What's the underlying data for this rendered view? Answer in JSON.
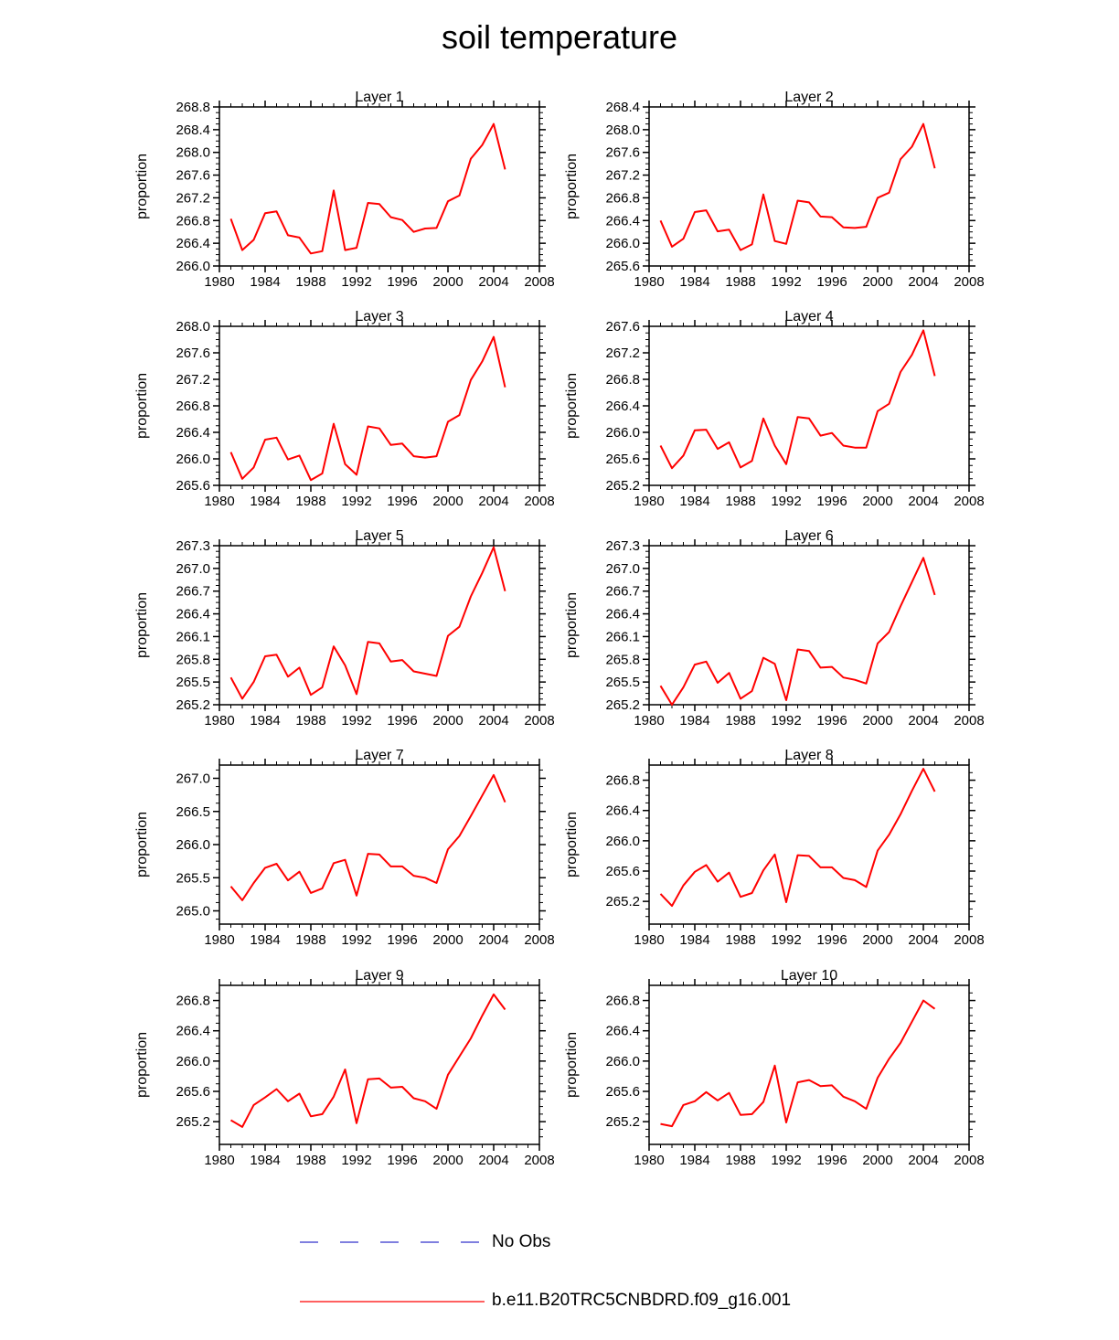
{
  "title": "soil temperature",
  "legend": [
    {
      "label": "No Obs",
      "color": "#3333cc",
      "style": "dashed"
    },
    {
      "label": "b.e11.B20TRC5CNBDRD.f09_g16.001",
      "color": "#ff0000",
      "style": "solid"
    }
  ],
  "chart_data": [
    {
      "type": "line",
      "title": "Layer 1",
      "ylabel": "proportion",
      "xlim": [
        1980,
        2008
      ],
      "xticks": [
        1980,
        1984,
        1988,
        1992,
        1996,
        2000,
        2004,
        2008
      ],
      "ylim": [
        266.0,
        268.8
      ],
      "yticks": [
        266.0,
        266.4,
        266.8,
        267.2,
        267.6,
        268.0,
        268.4,
        268.8
      ],
      "ytick_labels": [
        "266.0",
        "266.4",
        "266.8",
        "267.2",
        "267.6",
        "268.0",
        "268.4",
        "268.8"
      ],
      "series": [
        {
          "name": "b.e11.B20TRC5CNBDRD.f09_g16.001",
          "x": [
            1981,
            1982,
            1983,
            1984,
            1985,
            1986,
            1987,
            1988,
            1989,
            1990,
            1991,
            1992,
            1993,
            1994,
            1995,
            1996,
            1997,
            1998,
            1999,
            2000,
            2001,
            2002,
            2003,
            2004,
            2005
          ],
          "y": [
            266.83,
            266.28,
            266.46,
            266.93,
            266.96,
            266.54,
            266.5,
            266.22,
            266.26,
            267.33,
            266.28,
            266.32,
            267.11,
            267.09,
            266.86,
            266.81,
            266.6,
            266.66,
            266.67,
            267.14,
            267.24,
            267.89,
            268.13,
            268.5,
            267.7
          ]
        }
      ]
    },
    {
      "type": "line",
      "title": "Layer 2",
      "ylabel": "proportion",
      "xlim": [
        1980,
        2008
      ],
      "xticks": [
        1980,
        1984,
        1988,
        1992,
        1996,
        2000,
        2004,
        2008
      ],
      "ylim": [
        265.6,
        268.4
      ],
      "yticks": [
        265.6,
        266.0,
        266.4,
        266.8,
        267.2,
        267.6,
        268.0,
        268.4
      ],
      "ytick_labels": [
        "265.6",
        "266.0",
        "266.4",
        "266.8",
        "267.2",
        "267.6",
        "268.0",
        "268.4"
      ],
      "series": [
        {
          "name": "b.e11.B20TRC5CNBDRD.f09_g16.001",
          "x": [
            1981,
            1982,
            1983,
            1984,
            1985,
            1986,
            1987,
            1988,
            1989,
            1990,
            1991,
            1992,
            1993,
            1994,
            1995,
            1996,
            1997,
            1998,
            1999,
            2000,
            2001,
            2002,
            2003,
            2004,
            2005
          ],
          "y": [
            266.4,
            265.94,
            266.08,
            266.55,
            266.58,
            266.21,
            266.24,
            265.88,
            265.98,
            266.86,
            266.04,
            265.99,
            266.75,
            266.72,
            266.47,
            266.46,
            266.28,
            266.27,
            266.29,
            266.8,
            266.89,
            267.48,
            267.7,
            268.1,
            267.32
          ]
        }
      ]
    },
    {
      "type": "line",
      "title": "Layer 3",
      "ylabel": "proportion",
      "xlim": [
        1980,
        2008
      ],
      "xticks": [
        1980,
        1984,
        1988,
        1992,
        1996,
        2000,
        2004,
        2008
      ],
      "ylim": [
        265.6,
        268.0
      ],
      "yticks": [
        265.6,
        266.0,
        266.4,
        266.8,
        267.2,
        267.6,
        268.0
      ],
      "ytick_labels": [
        "265.6",
        "266.0",
        "266.4",
        "266.8",
        "267.2",
        "267.6",
        "268.0"
      ],
      "series": [
        {
          "name": "b.e11.B20TRC5CNBDRD.f09_g16.001",
          "x": [
            1981,
            1982,
            1983,
            1984,
            1985,
            1986,
            1987,
            1988,
            1989,
            1990,
            1991,
            1992,
            1993,
            1994,
            1995,
            1996,
            1997,
            1998,
            1999,
            2000,
            2001,
            2002,
            2003,
            2004,
            2005
          ],
          "y": [
            266.1,
            265.7,
            265.87,
            266.29,
            266.32,
            265.99,
            266.05,
            265.68,
            265.78,
            266.53,
            265.92,
            265.76,
            266.49,
            266.46,
            266.21,
            266.23,
            266.04,
            266.02,
            266.04,
            266.56,
            266.66,
            267.19,
            267.47,
            267.84,
            267.08
          ]
        }
      ]
    },
    {
      "type": "line",
      "title": "Layer 4",
      "ylabel": "proportion",
      "xlim": [
        1980,
        2008
      ],
      "xticks": [
        1980,
        1984,
        1988,
        1992,
        1996,
        2000,
        2004,
        2008
      ],
      "ylim": [
        265.2,
        267.6
      ],
      "yticks": [
        265.2,
        265.6,
        266.0,
        266.4,
        266.8,
        267.2,
        267.6
      ],
      "ytick_labels": [
        "265.2",
        "265.6",
        "266.0",
        "266.4",
        "266.8",
        "267.2",
        "267.6"
      ],
      "series": [
        {
          "name": "b.e11.B20TRC5CNBDRD.f09_g16.001",
          "x": [
            1981,
            1982,
            1983,
            1984,
            1985,
            1986,
            1987,
            1988,
            1989,
            1990,
            1991,
            1992,
            1993,
            1994,
            1995,
            1996,
            1997,
            1998,
            1999,
            2000,
            2001,
            2002,
            2003,
            2004,
            2005
          ],
          "y": [
            265.8,
            265.46,
            265.65,
            266.03,
            266.04,
            265.75,
            265.85,
            265.47,
            265.57,
            266.21,
            265.8,
            265.52,
            266.23,
            266.21,
            265.95,
            265.99,
            265.8,
            265.77,
            265.77,
            266.32,
            266.43,
            266.91,
            267.17,
            267.54,
            266.85
          ]
        }
      ]
    },
    {
      "type": "line",
      "title": "Layer 5",
      "ylabel": "proportion",
      "xlim": [
        1980,
        2008
      ],
      "xticks": [
        1980,
        1984,
        1988,
        1992,
        1996,
        2000,
        2004,
        2008
      ],
      "ylim": [
        265.2,
        267.3
      ],
      "yticks": [
        265.2,
        265.5,
        265.8,
        266.1,
        266.4,
        266.7,
        267.0,
        267.3
      ],
      "ytick_labels": [
        "265.2",
        "265.5",
        "265.8",
        "266.1",
        "266.4",
        "266.7",
        "267.0",
        "267.3"
      ],
      "series": [
        {
          "name": "b.e11.B20TRC5CNBDRD.f09_g16.001",
          "x": [
            1981,
            1982,
            1983,
            1984,
            1985,
            1986,
            1987,
            1988,
            1989,
            1990,
            1991,
            1992,
            1993,
            1994,
            1995,
            1996,
            1997,
            1998,
            1999,
            2000,
            2001,
            2002,
            2003,
            2004,
            2005
          ],
          "y": [
            265.56,
            265.28,
            265.5,
            265.84,
            265.86,
            265.57,
            265.69,
            265.33,
            265.43,
            265.97,
            265.72,
            265.34,
            266.03,
            266.01,
            265.77,
            265.79,
            265.64,
            265.61,
            265.58,
            266.11,
            266.23,
            266.63,
            266.94,
            267.28,
            266.7
          ]
        }
      ]
    },
    {
      "type": "line",
      "title": "Layer 6",
      "ylabel": "proportion",
      "xlim": [
        1980,
        2008
      ],
      "xticks": [
        1980,
        1984,
        1988,
        1992,
        1996,
        2000,
        2004,
        2008
      ],
      "ylim": [
        265.2,
        267.3
      ],
      "yticks": [
        265.2,
        265.5,
        265.8,
        266.1,
        266.4,
        266.7,
        267.0,
        267.3
      ],
      "ytick_labels": [
        "265.2",
        "265.5",
        "265.8",
        "266.1",
        "266.4",
        "266.7",
        "267.0",
        "267.3"
      ],
      "series": [
        {
          "name": "b.e11.B20TRC5CNBDRD.f09_g16.001",
          "x": [
            1981,
            1982,
            1983,
            1984,
            1985,
            1986,
            1987,
            1988,
            1989,
            1990,
            1991,
            1992,
            1993,
            1994,
            1995,
            1996,
            1997,
            1998,
            1999,
            2000,
            2001,
            2002,
            2003,
            2004,
            2005
          ],
          "y": [
            265.45,
            265.2,
            265.43,
            265.73,
            265.77,
            265.49,
            265.62,
            265.28,
            265.38,
            265.82,
            265.74,
            265.26,
            265.93,
            265.91,
            265.69,
            265.7,
            265.56,
            265.53,
            265.48,
            266.01,
            266.16,
            266.5,
            266.82,
            267.14,
            266.65
          ]
        }
      ]
    },
    {
      "type": "line",
      "title": "Layer 7",
      "ylabel": "proportion",
      "xlim": [
        1980,
        2008
      ],
      "xticks": [
        1980,
        1984,
        1988,
        1992,
        1996,
        2000,
        2004,
        2008
      ],
      "ylim": [
        264.8,
        267.2
      ],
      "yticks": [
        265.0,
        265.5,
        266.0,
        266.5,
        267.0
      ],
      "ytick_labels": [
        "265.0",
        "265.5",
        "266.0",
        "266.5",
        "267.0"
      ],
      "series": [
        {
          "name": "b.e11.B20TRC5CNBDRD.f09_g16.001",
          "x": [
            1981,
            1982,
            1983,
            1984,
            1985,
            1986,
            1987,
            1988,
            1989,
            1990,
            1991,
            1992,
            1993,
            1994,
            1995,
            1996,
            1997,
            1998,
            1999,
            2000,
            2001,
            2002,
            2003,
            2004,
            2005
          ],
          "y": [
            265.37,
            265.16,
            265.42,
            265.65,
            265.71,
            265.46,
            265.59,
            265.27,
            265.34,
            265.72,
            265.77,
            265.23,
            265.86,
            265.85,
            265.67,
            265.67,
            265.53,
            265.5,
            265.42,
            265.93,
            266.13,
            266.43,
            266.74,
            267.05,
            266.64
          ]
        }
      ]
    },
    {
      "type": "line",
      "title": "Layer 8",
      "ylabel": "proportion",
      "xlim": [
        1980,
        2008
      ],
      "xticks": [
        1980,
        1984,
        1988,
        1992,
        1996,
        2000,
        2004,
        2008
      ],
      "ylim": [
        264.9,
        267.0
      ],
      "yticks": [
        265.2,
        265.6,
        266.0,
        266.4,
        266.8
      ],
      "ytick_labels": [
        "265.2",
        "265.6",
        "266.0",
        "266.4",
        "266.8"
      ],
      "series": [
        {
          "name": "b.e11.B20TRC5CNBDRD.f09_g16.001",
          "x": [
            1981,
            1982,
            1983,
            1984,
            1985,
            1986,
            1987,
            1988,
            1989,
            1990,
            1991,
            1992,
            1993,
            1994,
            1995,
            1996,
            1997,
            1998,
            1999,
            2000,
            2001,
            2002,
            2003,
            2004,
            2005
          ],
          "y": [
            265.3,
            265.14,
            265.41,
            265.59,
            265.68,
            265.46,
            265.58,
            265.26,
            265.31,
            265.61,
            265.82,
            265.19,
            265.81,
            265.8,
            265.65,
            265.65,
            265.51,
            265.48,
            265.39,
            265.87,
            266.08,
            266.35,
            266.66,
            266.95,
            266.65
          ]
        }
      ]
    },
    {
      "type": "line",
      "title": "Layer 9",
      "ylabel": "proportion",
      "xlim": [
        1980,
        2008
      ],
      "xticks": [
        1980,
        1984,
        1988,
        1992,
        1996,
        2000,
        2004,
        2008
      ],
      "ylim": [
        264.9,
        267.0
      ],
      "yticks": [
        265.2,
        265.6,
        266.0,
        266.4,
        266.8
      ],
      "ytick_labels": [
        "265.2",
        "265.6",
        "266.0",
        "266.4",
        "266.8"
      ],
      "series": [
        {
          "name": "b.e11.B20TRC5CNBDRD.f09_g16.001",
          "x": [
            1981,
            1982,
            1983,
            1984,
            1985,
            1986,
            1987,
            1988,
            1989,
            1990,
            1991,
            1992,
            1993,
            1994,
            1995,
            1996,
            1997,
            1998,
            1999,
            2000,
            2001,
            2002,
            2003,
            2004,
            2005
          ],
          "y": [
            265.22,
            265.13,
            265.42,
            265.52,
            265.63,
            265.47,
            265.57,
            265.27,
            265.3,
            265.53,
            265.89,
            265.18,
            265.76,
            265.77,
            265.65,
            265.66,
            265.51,
            265.47,
            265.37,
            265.82,
            266.06,
            266.3,
            266.6,
            266.88,
            266.68
          ]
        }
      ]
    },
    {
      "type": "line",
      "title": "Layer 10",
      "ylabel": "proportion",
      "xlim": [
        1980,
        2008
      ],
      "xticks": [
        1980,
        1984,
        1988,
        1992,
        1996,
        2000,
        2004,
        2008
      ],
      "ylim": [
        264.9,
        267.0
      ],
      "yticks": [
        265.2,
        265.6,
        266.0,
        266.4,
        266.8
      ],
      "ytick_labels": [
        "265.2",
        "265.6",
        "266.0",
        "266.4",
        "266.8"
      ],
      "series": [
        {
          "name": "b.e11.B20TRC5CNBDRD.f09_g16.001",
          "x": [
            1981,
            1982,
            1983,
            1984,
            1985,
            1986,
            1987,
            1988,
            1989,
            1990,
            1991,
            1992,
            1993,
            1994,
            1995,
            1996,
            1997,
            1998,
            1999,
            2000,
            2001,
            2002,
            2003,
            2004,
            2005
          ],
          "y": [
            265.17,
            265.14,
            265.42,
            265.47,
            265.59,
            265.48,
            265.58,
            265.29,
            265.3,
            265.46,
            265.94,
            265.19,
            265.72,
            265.75,
            265.67,
            265.68,
            265.53,
            265.47,
            265.37,
            265.78,
            266.03,
            266.24,
            266.52,
            266.8,
            266.69
          ]
        }
      ]
    }
  ]
}
